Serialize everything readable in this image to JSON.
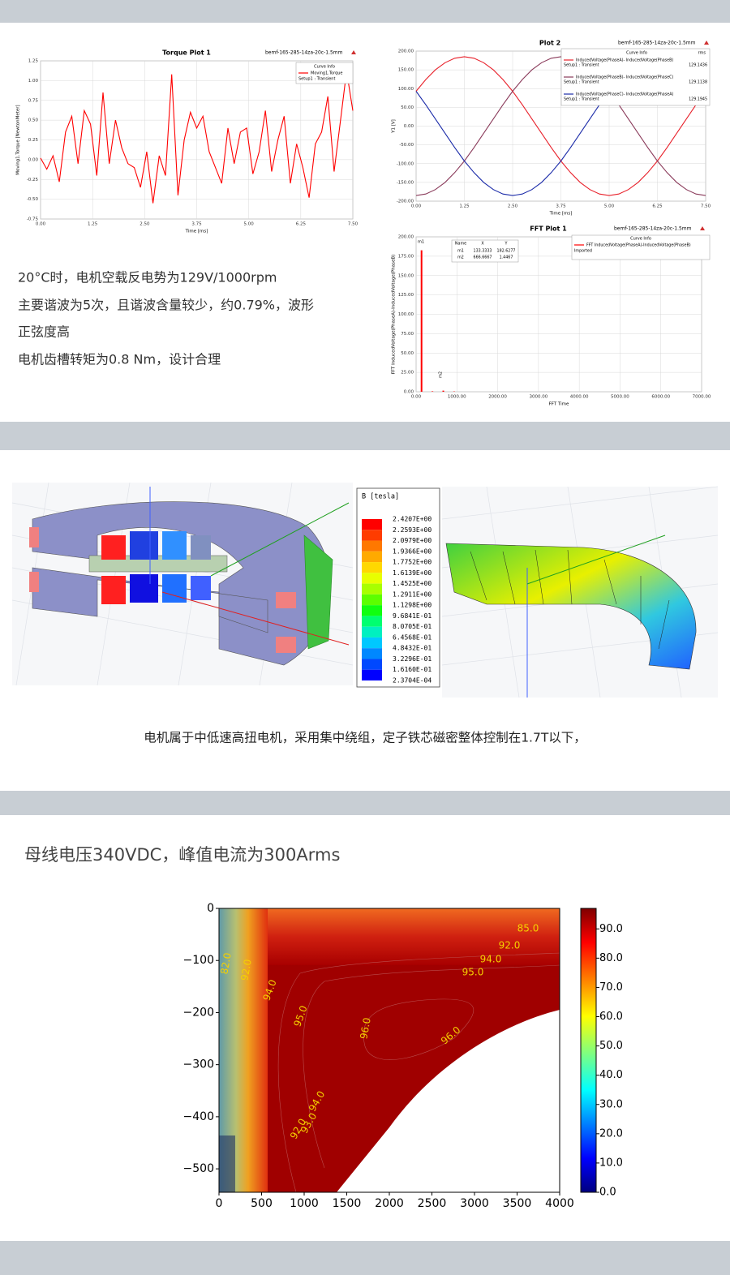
{
  "torque_plot": {
    "type": "line",
    "title": "Torque Plot 1",
    "design": "bemf-165-285-14za-20c-1.5mm",
    "xlabel": "Time [ms]",
    "ylabel": "Moving1.Torque [NewtonMeter]",
    "legend_title": "Curve Info",
    "x": [
      0,
      0.15,
      0.3,
      0.45,
      0.6,
      0.75,
      0.9,
      1.05,
      1.2,
      1.35,
      1.5,
      1.65,
      1.8,
      1.95,
      2.1,
      2.25,
      2.4,
      2.55,
      2.7,
      2.85,
      3,
      3.15,
      3.3,
      3.45,
      3.6,
      3.75,
      3.9,
      4.05,
      4.2,
      4.35,
      4.5,
      4.65,
      4.8,
      4.95,
      5.1,
      5.25,
      5.4,
      5.55,
      5.7,
      5.85,
      6,
      6.15,
      6.3,
      6.45,
      6.6,
      6.75,
      6.9,
      7.05,
      7.2,
      7.35,
      7.5
    ],
    "series": [
      {
        "name": "Moving1.Torque",
        "setup": "Setup1 : Transient",
        "color": "#ff0000",
        "values": [
          0.02,
          -0.12,
          0.05,
          -0.28,
          0.35,
          0.55,
          -0.05,
          0.62,
          0.45,
          -0.2,
          0.85,
          -0.05,
          0.5,
          0.15,
          -0.05,
          -0.1,
          -0.35,
          0.1,
          -0.55,
          0.05,
          -0.2,
          1.08,
          -0.45,
          0.25,
          0.6,
          0.4,
          0.55,
          0.1,
          -0.1,
          -0.3,
          0.4,
          -0.05,
          0.35,
          0.4,
          -0.18,
          0.1,
          0.62,
          -0.15,
          0.25,
          0.55,
          -0.3,
          0.2,
          -0.1,
          -0.48,
          0.2,
          0.35,
          0.8,
          -0.15,
          0.48,
          1.12,
          0.62
        ]
      }
    ],
    "xlim": [
      0,
      7.5
    ],
    "ylim": [
      -0.75,
      1.25
    ],
    "grid": true,
    "xticks": [
      {
        "value": 0,
        "label": "0.00"
      },
      1.25,
      {
        "value": 2.5,
        "label": "2.50"
      },
      3.75,
      {
        "value": 5,
        "label": "5.00"
      },
      6.25,
      {
        "value": 7.5,
        "label": "7.50"
      }
    ],
    "yticks": [
      -0.75,
      {
        "value": -0.5,
        "label": "-0.50"
      },
      -0.25,
      {
        "value": 0,
        "label": "0.00"
      },
      0.25,
      {
        "value": 0.5,
        "label": "0.50"
      },
      0.75,
      {
        "value": 1,
        "label": "1.00"
      },
      1.25
    ]
  },
  "plot2": {
    "type": "line",
    "title": "Plot 2",
    "design": "bemf-165-285-14za-20c-1.5mm",
    "xlabel": "Time [ms]",
    "ylabel": "Y1 [V]",
    "legend_title": "Curve Info",
    "legend_stat": "rms",
    "x": [
      0,
      0.25,
      0.5,
      0.75,
      1,
      1.25,
      1.5,
      1.75,
      2,
      2.25,
      2.5,
      2.75,
      3,
      3.25,
      3.5,
      3.75,
      4,
      4.25,
      4.5,
      4.75,
      5,
      5.25,
      5.5,
      5.75,
      6,
      6.25,
      6.5,
      6.75,
      7,
      7.25,
      7.5
    ],
    "series": [
      {
        "name": "InducedVoltage(PhaseA)- InducedVoltage(PhaseB)",
        "setup": "Setup1 : Transient",
        "rms": 129.1436,
        "color": "#e8202a",
        "values": [
          93,
          124,
          150,
          169,
          181,
          185,
          181,
          169,
          150,
          124,
          93,
          57,
          19,
          -19,
          -57,
          -93,
          -124,
          -150,
          -169,
          -181,
          -185,
          -181,
          -169,
          -150,
          -124,
          -93,
          -57,
          -19,
          19,
          57,
          93
        ]
      },
      {
        "name": "InducedVoltage(PhaseB)- InducedVoltage(PhaseC)",
        "setup": "Setup1 : Transient",
        "rms": 129.1138,
        "color": "#8a3a5a",
        "values": [
          -185,
          -181,
          -169,
          -150,
          -124,
          -93,
          -57,
          -19,
          19,
          57,
          93,
          124,
          150,
          169,
          181,
          185,
          181,
          169,
          150,
          124,
          93,
          57,
          19,
          -19,
          -57,
          -93,
          -124,
          -150,
          -169,
          -181,
          -185
        ]
      },
      {
        "name": "InducedVoltage(PhaseC)- InducedVoltage(PhaseA)",
        "setup": "Setup1 : Transient",
        "rms": 129.1945,
        "color": "#1a2aa8",
        "values": [
          93,
          57,
          19,
          -19,
          -57,
          -93,
          -124,
          -150,
          -169,
          -181,
          -185,
          -181,
          -169,
          -150,
          -124,
          -93,
          -57,
          -19,
          19,
          57,
          93,
          124,
          150,
          169,
          181,
          185,
          181,
          169,
          150,
          124,
          93
        ]
      }
    ],
    "xlim": [
      0,
      7.5
    ],
    "ylim": [
      -200,
      200
    ],
    "grid": true,
    "xticks": [
      {
        "value": 0,
        "label": "0.00"
      },
      1.25,
      {
        "value": 2.5,
        "label": "2.50"
      },
      3.75,
      {
        "value": 5,
        "label": "5.00"
      },
      6.25,
      {
        "value": 7.5,
        "label": "7.50"
      }
    ],
    "yticks": [
      {
        "value": -200,
        "label": "-200.00"
      },
      {
        "value": -150,
        "label": "-150.00"
      },
      {
        "value": -100,
        "label": "-100.00"
      },
      {
        "value": -50,
        "label": "-50.00"
      },
      {
        "value": 0,
        "label": "0.00"
      },
      {
        "value": 50,
        "label": "50.00"
      },
      {
        "value": 100,
        "label": "100.00"
      },
      {
        "value": 150,
        "label": "150.00"
      },
      {
        "value": 200,
        "label": "200.00"
      }
    ]
  },
  "fft_plot": {
    "type": "bar",
    "title": "FFT  Plot 1",
    "design": "bemf-165-285-14za-20c-1.5mm",
    "xlabel": "FFT Time",
    "ylabel": "FFT InducedVoltage(PhaseA)-InducedVoltage(PhaseB)",
    "legend_title": "Curve Info",
    "x": [
      133.3333,
      400,
      666.6667,
      933.3333
    ],
    "series": [
      {
        "name": "FFT InducedVoltage(PhaseA)-InducedVoltage(PhaseB)",
        "setup": "Imported",
        "color": "#ff0000",
        "values": [
          182.6277,
          0.6,
          1.4467,
          0.4
        ]
      }
    ],
    "markers": {
      "header": [
        "Name",
        "X",
        "Y"
      ],
      "rows": [
        [
          "m1",
          "133.3333",
          "182.6277"
        ],
        [
          "m2",
          "666.6667",
          "1.4467"
        ]
      ]
    },
    "xlim": [
      0,
      7000
    ],
    "ylim": [
      0,
      200
    ],
    "grid": true,
    "xticks": [
      {
        "value": 0,
        "label": "0.00"
      },
      {
        "value": 1000,
        "label": "1000.00"
      },
      {
        "value": 2000,
        "label": "2000.00"
      },
      {
        "value": 3000,
        "label": "3000.00"
      },
      {
        "value": 4000,
        "label": "4000.00"
      },
      {
        "value": 5000,
        "label": "5000.00"
      },
      {
        "value": 6000,
        "label": "6000.00"
      },
      {
        "value": 7000,
        "label": "7000.00"
      }
    ],
    "yticks": [
      {
        "value": 0,
        "label": "0.00"
      },
      {
        "value": 25,
        "label": "25.00"
      },
      {
        "value": 50,
        "label": "50.00"
      },
      {
        "value": 75,
        "label": "75.00"
      },
      {
        "value": 100,
        "label": "100.00"
      },
      {
        "value": 125,
        "label": "125.00"
      },
      {
        "value": 150,
        "label": "150.00"
      },
      {
        "value": 175,
        "label": "175.00"
      },
      {
        "value": 200,
        "label": "200.00"
      }
    ]
  },
  "notes": [
    "20°C时，电机空载反电势为129V/1000rpm",
    "主要谐波为5次，且谐波含量较少，约0.79%，波形",
    "正弦度高",
    "电机齿槽转矩为0.8 Nm，设计合理"
  ],
  "field_legend": {
    "title": "B [tesla]",
    "ticks": [
      {
        "value": 2.4207,
        "label": "2.4207E+00"
      },
      {
        "value": 2.2593,
        "label": "2.2593E+00"
      },
      {
        "value": 2.0979,
        "label": "2.0979E+00"
      },
      {
        "value": 1.9366,
        "label": "1.9366E+00"
      },
      {
        "value": 1.7752,
        "label": "1.7752E+00"
      },
      {
        "value": 1.6139,
        "label": "1.6139E+00"
      },
      {
        "value": 1.4525,
        "label": "1.4525E+00"
      },
      {
        "value": 1.2911,
        "label": "1.2911E+00"
      },
      {
        "value": 1.1298,
        "label": "1.1298E+00"
      },
      {
        "value": 0.96841,
        "label": "9.6841E-01"
      },
      {
        "value": 0.80705,
        "label": "8.0705E-01"
      },
      {
        "value": 0.64568,
        "label": "6.4568E-01"
      },
      {
        "value": 0.48432,
        "label": "4.8432E-01"
      },
      {
        "value": 0.32296,
        "label": "3.2296E-01"
      },
      {
        "value": 0.1616,
        "label": "1.6160E-01"
      },
      {
        "value": 0.00023704,
        "label": "2.3704E-04"
      }
    ],
    "colors": [
      "#ff0000",
      "#ff3c00",
      "#ff7800",
      "#ffaa00",
      "#ffd800",
      "#e8ff00",
      "#a8ff00",
      "#5cff00",
      "#10ff10",
      "#00ff70",
      "#00f0c0",
      "#00c8ff",
      "#0088ff",
      "#0048ff",
      "#0000ff"
    ]
  },
  "field_caption": "电机属于中低速高扭电机，采用集中绕组，定子铁芯磁密整体控制在1.7T以下，",
  "efficiency_title": "母线电压340VDC，峰值电流为300Arms",
  "efficiency_map": {
    "type": "contour",
    "xlim": [
      0,
      4000
    ],
    "ylim": [
      -545,
      0
    ],
    "xticks": [
      0,
      500,
      1000,
      1500,
      2000,
      2500,
      3000,
      3500,
      4000
    ],
    "yticks": [
      0,
      {
        "value": -100,
        "label": "−100"
      },
      {
        "value": -200,
        "label": "−200"
      },
      {
        "value": -300,
        "label": "−300"
      },
      {
        "value": -400,
        "label": "−400"
      },
      {
        "value": -500,
        "label": "−500"
      }
    ],
    "contour_labels": [
      "85.0",
      "92.0",
      "94.0",
      "95.0",
      "82.0",
      "92.0",
      "94.0",
      "95.0",
      "96.0",
      "96.0",
      "94.0",
      "93.0",
      "92.0"
    ],
    "colorbar_lim": [
      0,
      97
    ],
    "colorbar_ticks": [
      {
        "value": 0,
        "label": "0.0"
      },
      {
        "value": 10,
        "label": "10.0"
      },
      {
        "value": 20,
        "label": "20.0"
      },
      {
        "value": 30,
        "label": "30.0"
      },
      {
        "value": 40,
        "label": "40.0"
      },
      {
        "value": 50,
        "label": "50.0"
      },
      {
        "value": 60,
        "label": "60.0"
      },
      {
        "value": 70,
        "label": "70.0"
      },
      {
        "value": 80,
        "label": "80.0"
      },
      {
        "value": 90,
        "label": "90.0"
      }
    ]
  }
}
